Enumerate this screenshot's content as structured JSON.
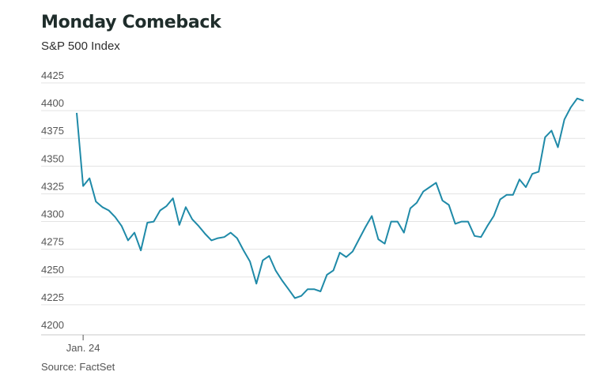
{
  "title": "Monday Comeback",
  "subtitle": "S&P 500 Index",
  "source": "Source: FactSet",
  "colors": {
    "line": "#1f8aa8",
    "grid": "#e3e3e3",
    "axis": "#c8c8c8"
  },
  "chart_data": {
    "type": "line",
    "title": "Monday Comeback",
    "subtitle": "S&P 500 Index",
    "ylim": [
      4200,
      4425
    ],
    "yticks": [
      4200,
      4225,
      4250,
      4275,
      4300,
      4325,
      4350,
      4375,
      4400,
      4425
    ],
    "xtick_labels": [
      {
        "index": 1,
        "label": "Jan. 24"
      }
    ],
    "grid": true,
    "series": [
      {
        "values": [
          4398,
          4332,
          4339,
          4318,
          4313,
          4310,
          4304,
          4296,
          4283,
          4290,
          4274,
          4299,
          4300,
          4310,
          4314,
          4321,
          4297,
          4313,
          4302,
          4296,
          4289,
          4283,
          4285,
          4286,
          4290,
          4285,
          4274,
          4264,
          4244,
          4265,
          4269,
          4256,
          4247,
          4239,
          4231,
          4233,
          4239,
          4239,
          4237,
          4252,
          4256,
          4272,
          4268,
          4273,
          4284,
          4295,
          4305,
          4284,
          4280,
          4300,
          4300,
          4290,
          4312,
          4317,
          4327,
          4331,
          4335,
          4319,
          4315,
          4298,
          4300,
          4300,
          4287,
          4286,
          4296,
          4305,
          4320,
          4324,
          4324,
          4338,
          4331,
          4343,
          4345,
          4376,
          4382,
          4367,
          4392,
          4403,
          4411,
          4409
        ]
      }
    ]
  }
}
